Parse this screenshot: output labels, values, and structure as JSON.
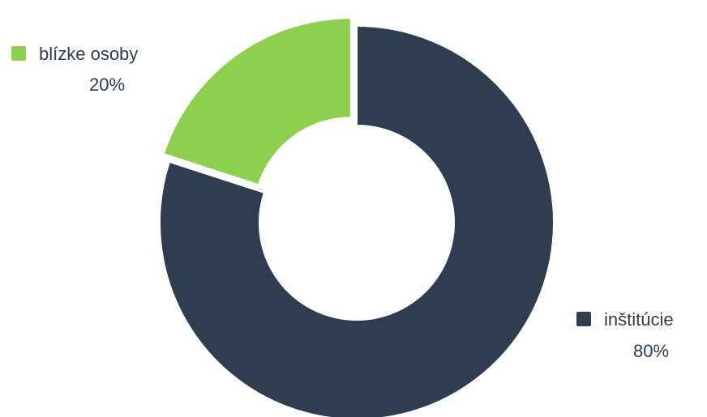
{
  "chart_data": {
    "type": "pie",
    "variant": "donut",
    "title": "",
    "legend": "inline labels",
    "slices": [
      {
        "name": "inštitúcie",
        "value": 80,
        "value_label": "80%",
        "color": "#2e3d50",
        "exploded": false
      },
      {
        "name": "blízke osoby",
        "value": 20,
        "value_label": "20%",
        "color": "#8dd04e",
        "exploded": true
      }
    ]
  }
}
